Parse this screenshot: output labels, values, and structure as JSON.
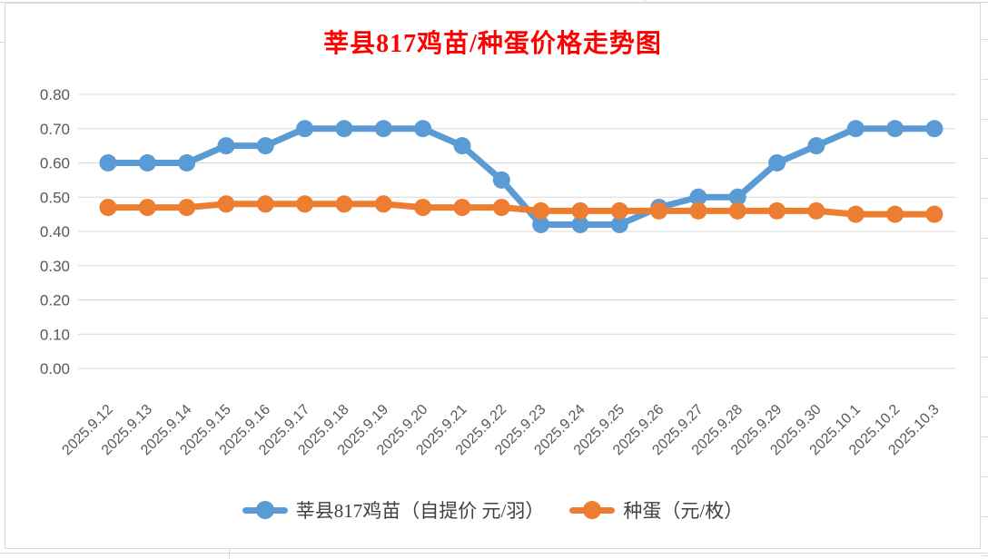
{
  "title": {
    "text": "莘县817鸡苗/种蛋价格走势图",
    "color": "#FF0000"
  },
  "chart_data": {
    "type": "line",
    "title": "莘县817鸡苗/种蛋价格走势图",
    "xlabel": "",
    "ylabel": "",
    "categories": [
      "2025.9.12",
      "2025.9.13",
      "2025.9.14",
      "2025.9.15",
      "2025.9.16",
      "2025.9.17",
      "2025.9.18",
      "2025.9.19",
      "2025.9.20",
      "2025.9.21",
      "2025.9.22",
      "2025.9.23",
      "2025.9.24",
      "2025.9.25",
      "2025.9.26",
      "2025.9.27",
      "2025.9.28",
      "2025.9.29",
      "2025.9.30",
      "2025.10.1",
      "2025.10.2",
      "2025.10.3"
    ],
    "series": [
      {
        "name": "莘县817鸡苗（自提价 元/羽）",
        "color": "#5B9BD5",
        "values": [
          0.6,
          0.6,
          0.6,
          0.65,
          0.65,
          0.7,
          0.7,
          0.7,
          0.7,
          0.65,
          0.55,
          0.42,
          0.42,
          0.42,
          0.47,
          0.5,
          0.5,
          0.6,
          0.65,
          0.7,
          0.7,
          0.7
        ]
      },
      {
        "name": "种蛋（元/枚）",
        "color": "#ED7D31",
        "values": [
          0.47,
          0.47,
          0.47,
          0.48,
          0.48,
          0.48,
          0.48,
          0.48,
          0.47,
          0.47,
          0.47,
          0.46,
          0.46,
          0.46,
          0.46,
          0.46,
          0.46,
          0.46,
          0.46,
          0.45,
          0.45,
          0.45
        ]
      }
    ],
    "ylim": [
      0.0,
      0.8
    ],
    "ytick_labels": [
      "0.00",
      "0.10",
      "0.20",
      "0.30",
      "0.40",
      "0.50",
      "0.60",
      "0.70",
      "0.80"
    ],
    "grid": true,
    "legend_position": "bottom",
    "axis_label_color": "#595959",
    "gridline_color": "#D9D9D9",
    "legend_text_color": "#404040"
  }
}
